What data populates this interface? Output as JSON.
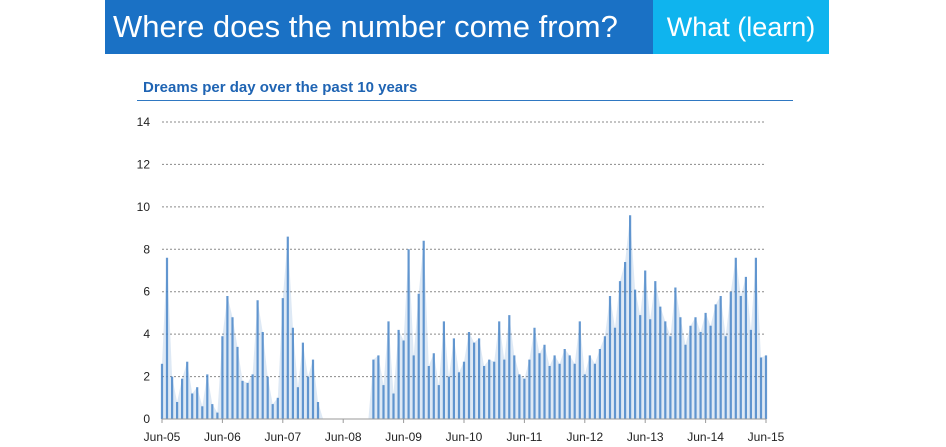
{
  "header": {
    "title": "Where does the number come from?",
    "tag": "What (learn)"
  },
  "colors": {
    "banner": "#1a71c5",
    "tag": "#0fb4ee",
    "series": "#4a86c8",
    "title": "#1f64b3"
  },
  "chart_data": {
    "type": "area",
    "title": "Dreams per day over the past 10 years",
    "xlabel": "",
    "ylabel": "",
    "ylim": [
      0,
      14
    ],
    "yticks": [
      0,
      2,
      4,
      6,
      8,
      10,
      12,
      14
    ],
    "xticks": [
      "Jun-05",
      "Jun-06",
      "Jun-07",
      "Jun-08",
      "Jun-09",
      "Jun-10",
      "Jun-11",
      "Jun-12",
      "Jun-13",
      "Jun-14",
      "Jun-15"
    ],
    "grid": true,
    "series": [
      {
        "x": [
          "Jun-05",
          "Jul-05",
          "Aug-05",
          "Sep-05",
          "Oct-05",
          "Nov-05",
          "Dec-05",
          "Jan-06",
          "Feb-06",
          "Mar-06",
          "Apr-06",
          "May-06",
          "Jun-06",
          "Jul-06",
          "Aug-06",
          "Sep-06",
          "Oct-06",
          "Nov-06",
          "Dec-06",
          "Jan-07",
          "Feb-07",
          "Mar-07",
          "Apr-07",
          "May-07",
          "Jun-07",
          "Jul-07",
          "Aug-07",
          "Sep-07",
          "Oct-07",
          "Nov-07",
          "Dec-07",
          "Jan-08",
          "Feb-08",
          "Mar-08",
          "Apr-08",
          "May-08",
          "Jun-08",
          "Jul-08",
          "Aug-08",
          "Sep-08",
          "Oct-08",
          "Nov-08",
          "Dec-08",
          "Jan-09",
          "Feb-09",
          "Mar-09",
          "Apr-09",
          "May-09",
          "Jun-09",
          "Jul-09",
          "Aug-09",
          "Sep-09",
          "Oct-09",
          "Nov-09",
          "Dec-09",
          "Jan-10",
          "Feb-10",
          "Mar-10",
          "Apr-10",
          "May-10",
          "Jun-10",
          "Jul-10",
          "Aug-10",
          "Sep-10",
          "Oct-10",
          "Nov-10",
          "Dec-10",
          "Jan-11",
          "Feb-11",
          "Mar-11",
          "Apr-11",
          "May-11",
          "Jun-11",
          "Jul-11",
          "Aug-11",
          "Sep-11",
          "Oct-11",
          "Nov-11",
          "Dec-11",
          "Jan-12",
          "Feb-12",
          "Mar-12",
          "Apr-12",
          "May-12",
          "Jun-12",
          "Jul-12",
          "Aug-12",
          "Sep-12",
          "Oct-12",
          "Nov-12",
          "Dec-12",
          "Jan-13",
          "Feb-13",
          "Mar-13",
          "Apr-13",
          "May-13",
          "Jun-13",
          "Jul-13",
          "Aug-13",
          "Sep-13",
          "Oct-13",
          "Nov-13",
          "Dec-13",
          "Jan-14",
          "Feb-14",
          "Mar-14",
          "Apr-14",
          "May-14",
          "Jun-14",
          "Jul-14",
          "Aug-14",
          "Sep-14",
          "Oct-14",
          "Nov-14",
          "Dec-14",
          "Jan-15",
          "Feb-15",
          "Mar-15",
          "Apr-15",
          "May-15",
          "Jun-15"
        ],
        "values": [
          2.6,
          7.6,
          2.0,
          0.8,
          1.9,
          2.7,
          1.2,
          1.5,
          0.6,
          2.1,
          0.7,
          0.3,
          3.9,
          5.8,
          4.8,
          3.4,
          1.8,
          1.7,
          2.1,
          5.6,
          4.1,
          2.0,
          0.7,
          1.0,
          5.7,
          8.6,
          4.3,
          1.5,
          3.6,
          2.0,
          2.8,
          0.8,
          0,
          0,
          0,
          0,
          0,
          0,
          0,
          0,
          0,
          0,
          2.8,
          3.0,
          1.6,
          4.6,
          1.2,
          4.2,
          3.7,
          8.0,
          3.0,
          5.9,
          8.4,
          2.5,
          3.1,
          1.6,
          4.6,
          2.0,
          3.8,
          2.2,
          2.7,
          4.1,
          3.6,
          3.8,
          2.5,
          2.8,
          2.7,
          4.6,
          2.8,
          4.9,
          3.0,
          2.1,
          1.9,
          2.8,
          4.3,
          3.1,
          3.5,
          2.5,
          3.0,
          2.6,
          3.3,
          3.0,
          2.6,
          4.6,
          2.1,
          3.0,
          2.6,
          3.3,
          3.9,
          5.8,
          4.3,
          6.5,
          7.4,
          9.6,
          6.1,
          4.9,
          7.0,
          4.7,
          6.5,
          5.3,
          4.6,
          3.9,
          6.2,
          4.8,
          3.5,
          4.4,
          4.8,
          4.1,
          5.0,
          4.4,
          5.4,
          5.8,
          3.9,
          6.0,
          7.6,
          5.8,
          6.7,
          4.2,
          7.6,
          2.9,
          3.0
        ]
      }
    ]
  }
}
